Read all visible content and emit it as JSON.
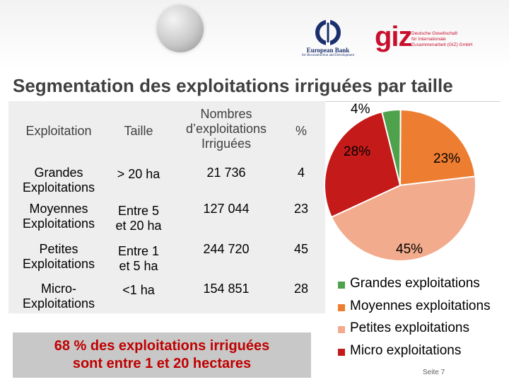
{
  "header": {
    "bank_name": "European Bank",
    "bank_sub": "for Reconstruction and Development",
    "giz_logo": "giz",
    "giz_lines": [
      "Deutsche Gesellschaft",
      "für Internationale",
      "Zusammenarbeit (GIZ) GmbH"
    ]
  },
  "slide": {
    "title": "Segmentation des exploitations irriguées par taille",
    "conclusion_line1": "68 % des exploitations irriguées",
    "conclusion_line2": "sont entre 1 et 20 hectares",
    "page": "Seite 7"
  },
  "table": {
    "headers": {
      "exploitation": "Exploitation",
      "taille": "Taille",
      "nombre_l1": "Nombres",
      "nombre_l2": "d’exploitations",
      "nombre_l3": "Irriguées",
      "pct": "%"
    },
    "rows": [
      {
        "name_l1": "Grandes",
        "name_l2": "Exploitations",
        "size_l1": "> 20 ha",
        "size_l2": "",
        "count": "21 736",
        "pct": "4"
      },
      {
        "name_l1": "Moyennes",
        "name_l2": "Exploitations",
        "size_l1": "Entre 5",
        "size_l2": "et 20 ha",
        "count": "127 044",
        "pct": "23"
      },
      {
        "name_l1": "Petites",
        "name_l2": "Exploitations",
        "size_l1": "Entre 1",
        "size_l2": "et 5 ha",
        "count": "244 720",
        "pct": "45"
      },
      {
        "name_l1": "Micro-",
        "name_l2": "Exploitations",
        "size_l1": "<1 ha",
        "size_l2": "",
        "count": "154 851",
        "pct": "28"
      }
    ]
  },
  "chart_data": {
    "type": "pie",
    "title": "",
    "categories": [
      "Grandes exploitations",
      "Moyennes exploitations",
      "Petites exploitations",
      "Micro exploitations"
    ],
    "values": [
      4,
      23,
      45,
      28
    ],
    "labels": [
      "4%",
      "23%",
      "45%",
      "28%"
    ],
    "colors": [
      "#4ea24b",
      "#ed7d31",
      "#f2ab8c",
      "#c41a1a"
    ],
    "legend": "bottom-right"
  }
}
